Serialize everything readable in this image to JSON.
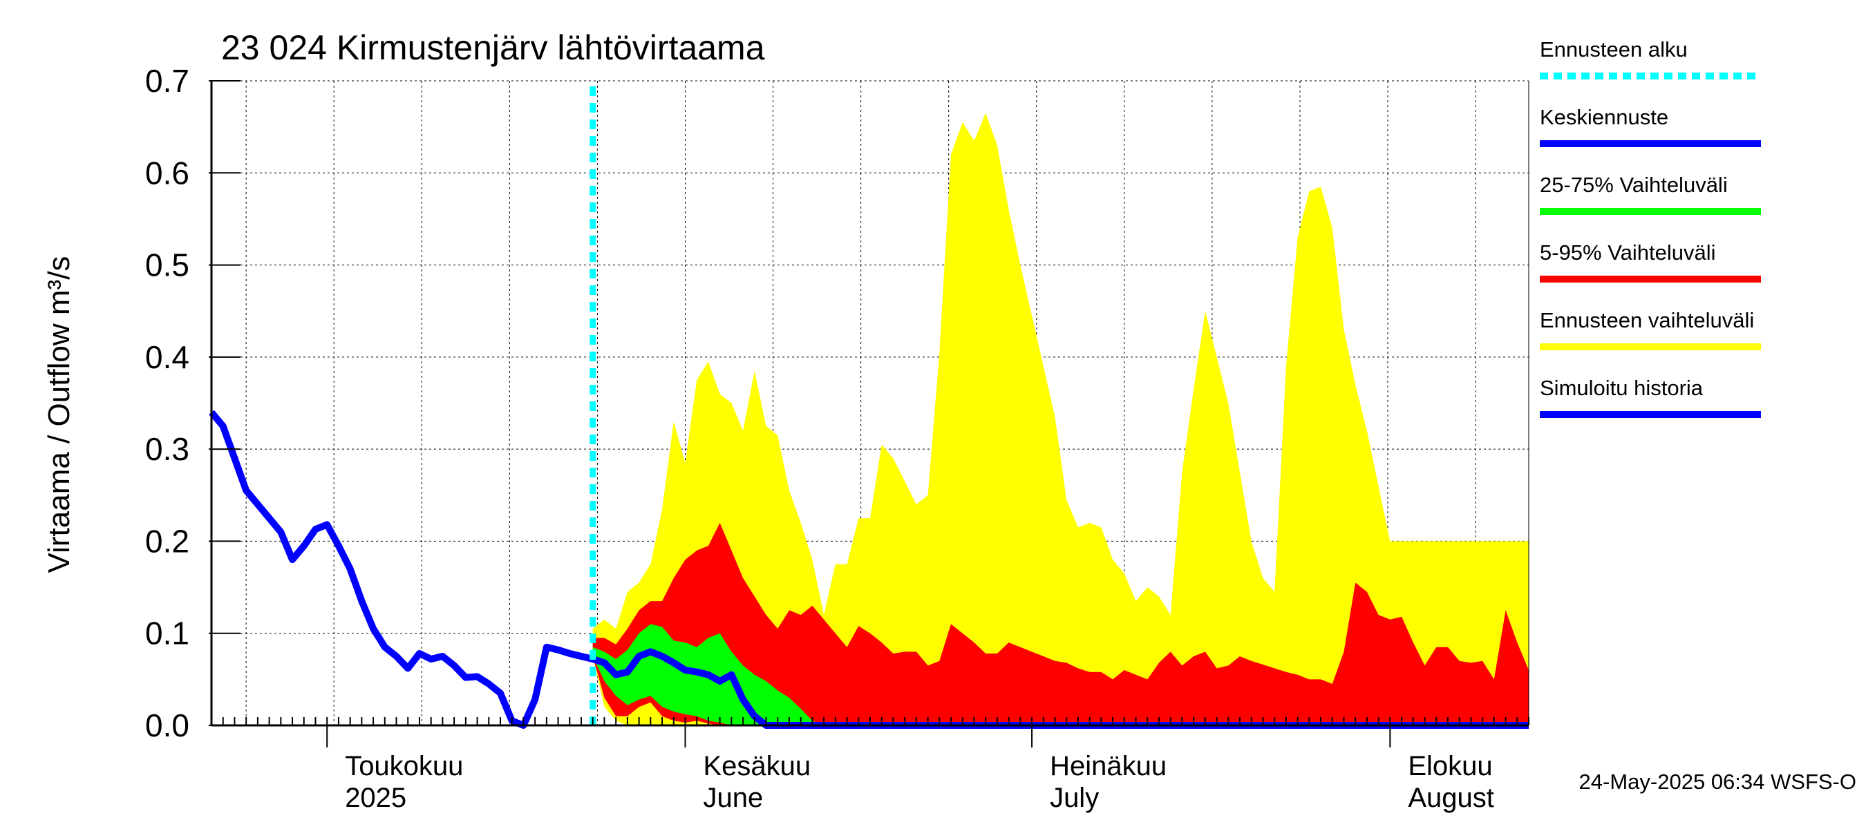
{
  "title": "23 024 Kirmustenjärv lähtövirtaama",
  "footer": "24-May-2025 06:34 WSFS-O",
  "colors": {
    "forecast_start": "#00ffff",
    "mean_forecast": "#0000ff",
    "band_25_75": "#00ff00",
    "band_5_95": "#ff0000",
    "band_full": "#ffff00",
    "history": "#0000ff"
  },
  "chart_data": {
    "type": "area",
    "title": "23 024 Kirmustenjärv lähtövirtaama",
    "ylabel": "Virtaama / Outflow    m³/s",
    "xlabel": "",
    "ylim": [
      0,
      0.7
    ],
    "yticks": [
      0.0,
      0.1,
      0.2,
      0.3,
      0.4,
      0.5,
      0.6,
      0.7
    ],
    "ytick_labels": [
      "0.0",
      "0.1",
      "0.2",
      "0.3",
      "0.4",
      "0.5",
      "0.6",
      "0.7"
    ],
    "x_range_days": [
      0,
      114
    ],
    "x_note": "day 0 = 2025-04-21; day 10 = 1 May; day 41 = 1 June; day 71 = 1 July; day 102 = 1 August",
    "grid": true,
    "month_ticks": [
      {
        "day": 10,
        "line1": "Toukokuu",
        "line2": "2025"
      },
      {
        "day": 41,
        "line1": "Kesäkuu",
        "line2": "June"
      },
      {
        "day": 71,
        "line1": "Heinäkuu",
        "line2": "July"
      },
      {
        "day": 102,
        "line1": "Elokuu",
        "line2": "August"
      }
    ],
    "forecast_start_day": 33,
    "legend": [
      {
        "label": "Ennusteen alku",
        "key": "forecast_start",
        "style": "dashed"
      },
      {
        "label": "Keskiennuste",
        "key": "mean_forecast",
        "style": "solid"
      },
      {
        "label": "25-75% Vaihteluväli",
        "key": "band_25_75",
        "style": "solid"
      },
      {
        "label": "5-95% Vaihteluväli",
        "key": "band_5_95",
        "style": "solid"
      },
      {
        "label": "Ennusteen vaihteluväli",
        "key": "band_full",
        "style": "solid"
      },
      {
        "label": "Simuloitu historia",
        "key": "history",
        "style": "solid"
      }
    ],
    "series": [
      {
        "name": "Simuloitu historia",
        "x": [
          0,
          1,
          3,
          4,
          6,
          7,
          8,
          9,
          10,
          11,
          12,
          13,
          14,
          15,
          16,
          17,
          18,
          19,
          20,
          21,
          22,
          23,
          24,
          25,
          26,
          27,
          28,
          29,
          30,
          31,
          32,
          33
        ],
        "values": [
          0.34,
          0.325,
          0.255,
          0.24,
          0.21,
          0.18,
          0.195,
          0.213,
          0.218,
          0.195,
          0.17,
          0.135,
          0.105,
          0.085,
          0.075,
          0.062,
          0.078,
          0.072,
          0.075,
          0.065,
          0.052,
          0.053,
          0.045,
          0.035,
          0.005,
          0.0,
          0.028,
          0.085,
          0.082,
          0.078,
          0.075,
          0.072
        ]
      },
      {
        "name": "Keskiennuste",
        "x": [
          33,
          34,
          35,
          36,
          37,
          38,
          39,
          40,
          41,
          42,
          43,
          44,
          45,
          46,
          47,
          48,
          49,
          50,
          114
        ],
        "values": [
          0.072,
          0.068,
          0.055,
          0.058,
          0.075,
          0.08,
          0.075,
          0.068,
          0.06,
          0.058,
          0.055,
          0.048,
          0.055,
          0.028,
          0.01,
          0.0,
          0.0,
          0.0,
          0.0
        ]
      },
      {
        "name": "25-75% Vaihteluväli",
        "x": [
          33,
          34,
          35,
          36,
          37,
          38,
          39,
          40,
          41,
          42,
          43,
          44,
          45,
          46,
          47,
          48,
          49,
          50,
          51,
          52,
          53
        ],
        "upper": [
          0.085,
          0.08,
          0.072,
          0.082,
          0.1,
          0.11,
          0.107,
          0.092,
          0.09,
          0.085,
          0.095,
          0.1,
          0.08,
          0.065,
          0.055,
          0.048,
          0.038,
          0.03,
          0.018,
          0.005,
          0.0
        ],
        "lower": [
          0.075,
          0.048,
          0.032,
          0.022,
          0.028,
          0.032,
          0.02,
          0.015,
          0.012,
          0.01,
          0.005,
          0.003,
          0.0,
          0.0,
          0.0,
          0.0,
          0.0,
          0.0,
          0.0,
          0.0,
          0.0
        ]
      },
      {
        "name": "5-95% Vaihteluväli",
        "x": [
          33,
          34,
          35,
          36,
          37,
          38,
          39,
          40,
          41,
          42,
          43,
          44,
          45,
          46,
          47,
          48,
          49,
          50,
          51,
          52,
          53,
          54,
          55,
          56,
          57,
          58,
          59,
          60,
          61,
          62,
          63,
          64,
          65,
          66,
          67,
          68,
          69,
          70,
          71,
          72,
          73,
          74,
          75,
          76,
          77,
          78,
          79,
          80,
          81,
          82,
          83,
          84,
          85,
          86,
          87,
          88,
          89,
          90,
          91,
          92,
          93,
          94,
          95,
          96,
          97,
          98,
          99,
          100,
          101,
          102,
          103,
          104,
          105,
          106,
          107,
          108,
          109,
          110,
          111,
          112,
          113,
          114
        ],
        "upper": [
          0.095,
          0.095,
          0.088,
          0.105,
          0.125,
          0.135,
          0.135,
          0.16,
          0.18,
          0.19,
          0.195,
          0.22,
          0.19,
          0.16,
          0.14,
          0.12,
          0.105,
          0.125,
          0.12,
          0.13,
          0.115,
          0.1,
          0.085,
          0.108,
          0.1,
          0.09,
          0.078,
          0.08,
          0.08,
          0.065,
          0.07,
          0.11,
          0.1,
          0.09,
          0.078,
          0.078,
          0.09,
          0.085,
          0.08,
          0.075,
          0.07,
          0.068,
          0.062,
          0.058,
          0.058,
          0.05,
          0.06,
          0.055,
          0.05,
          0.068,
          0.08,
          0.065,
          0.075,
          0.08,
          0.062,
          0.065,
          0.075,
          0.07,
          0.066,
          0.062,
          0.058,
          0.055,
          0.05,
          0.05,
          0.045,
          0.08,
          0.155,
          0.145,
          0.12,
          0.115,
          0.118,
          0.09,
          0.065,
          0.085,
          0.085,
          0.07,
          0.068,
          0.07,
          0.05,
          0.125,
          0.09,
          0.06
        ],
        "lower": [
          0.075,
          0.03,
          0.01,
          0.01,
          0.02,
          0.025,
          0.01,
          0.005,
          0.003,
          0.005,
          0.002,
          0.0,
          0.0,
          0.0,
          0.0,
          0.0,
          0.0,
          0.0,
          0.0,
          0.0,
          0.0,
          0.0,
          0.0,
          0.0,
          0.0,
          0.0,
          0.0,
          0.0,
          0.0,
          0.0,
          0.0,
          0.0,
          0.0,
          0.0,
          0.0,
          0.0,
          0.0,
          0.0,
          0.0,
          0.0,
          0.0,
          0.0,
          0.0,
          0.0,
          0.0,
          0.0,
          0.0,
          0.0,
          0.0,
          0.0,
          0.0,
          0.0,
          0.0,
          0.0,
          0.0,
          0.0,
          0.0,
          0.0,
          0.0,
          0.0,
          0.0,
          0.0,
          0.0,
          0.0,
          0.0,
          0.0,
          0.0,
          0.0,
          0.0,
          0.0,
          0.0,
          0.0,
          0.0,
          0.0,
          0.0,
          0.0,
          0.0,
          0.0,
          0.0,
          0.0,
          0.0,
          0.0
        ]
      },
      {
        "name": "Ennusteen vaihteluväli",
        "x": [
          33,
          34,
          35,
          36,
          37,
          38,
          39,
          40,
          41,
          42,
          43,
          44,
          45,
          46,
          47,
          48,
          49,
          50,
          51,
          52,
          53,
          54,
          55,
          56,
          57,
          58,
          59,
          60,
          61,
          62,
          63,
          64,
          65,
          66,
          67,
          68,
          69,
          70,
          71,
          72,
          73,
          74,
          75,
          76,
          77,
          78,
          79,
          80,
          81,
          82,
          83,
          84,
          85,
          86,
          87,
          88,
          89,
          90,
          91,
          92,
          93,
          94,
          95,
          96,
          97,
          98,
          99,
          100,
          101,
          102,
          103,
          104,
          105,
          106,
          107,
          108,
          109,
          110,
          111,
          112,
          113,
          114
        ],
        "upper": [
          0.105,
          0.115,
          0.105,
          0.145,
          0.155,
          0.175,
          0.235,
          0.33,
          0.285,
          0.375,
          0.395,
          0.36,
          0.35,
          0.32,
          0.385,
          0.325,
          0.315,
          0.255,
          0.22,
          0.18,
          0.12,
          0.175,
          0.175,
          0.225,
          0.225,
          0.305,
          0.29,
          0.265,
          0.24,
          0.25,
          0.405,
          0.62,
          0.655,
          0.635,
          0.665,
          0.63,
          0.56,
          0.5,
          0.445,
          0.39,
          0.335,
          0.245,
          0.215,
          0.22,
          0.215,
          0.18,
          0.165,
          0.135,
          0.15,
          0.14,
          0.12,
          0.275,
          0.365,
          0.45,
          0.4,
          0.35,
          0.275,
          0.2,
          0.16,
          0.145,
          0.39,
          0.53,
          0.58,
          0.585,
          0.54,
          0.43,
          0.37,
          0.32,
          0.26,
          0.2,
          0.2,
          0.2,
          0.2,
          0.2,
          0.2,
          0.2,
          0.2,
          0.2,
          0.2,
          0.2,
          0.2,
          0.2
        ],
        "lower": [
          0.075,
          0.02,
          0.005,
          0.0,
          0.0,
          0.0,
          0.0,
          0.0,
          0.0,
          0.0,
          0.0,
          0.0,
          0.0,
          0.0,
          0.0,
          0.0,
          0.0,
          0.0,
          0.0,
          0.0,
          0.0,
          0.0,
          0.0,
          0.0,
          0.0,
          0.0,
          0.0,
          0.0,
          0.0,
          0.0,
          0.0,
          0.0,
          0.0,
          0.0,
          0.0,
          0.0,
          0.0,
          0.0,
          0.0,
          0.0,
          0.0,
          0.0,
          0.0,
          0.0,
          0.0,
          0.0,
          0.0,
          0.0,
          0.0,
          0.0,
          0.0,
          0.0,
          0.0,
          0.0,
          0.0,
          0.0,
          0.0,
          0.0,
          0.0,
          0.0,
          0.0,
          0.0,
          0.0,
          0.0,
          0.0,
          0.0,
          0.0,
          0.0,
          0.0,
          0.0,
          0.0,
          0.0,
          0.0,
          0.0,
          0.0,
          0.0,
          0.0,
          0.0,
          0.0,
          0.0,
          0.0,
          0.0
        ]
      }
    ]
  }
}
